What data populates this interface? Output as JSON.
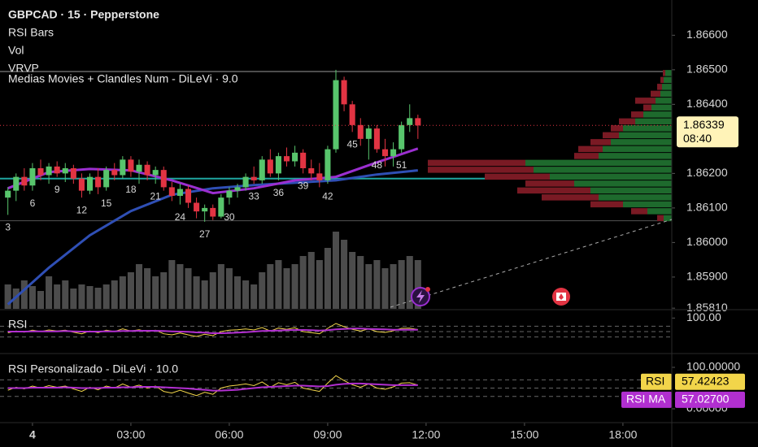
{
  "chart_data": [
    {
      "type": "candlestick",
      "title": "GBPCAD · 15 · Pepperstone",
      "indicators": [
        "RSI Bars",
        "Vol",
        "VRVP",
        "Medias Movies + Clandles Num - DiLeVi · 9.0"
      ],
      "x": [
        -0.75,
        -0.5,
        -0.25,
        0,
        0.25,
        0.5,
        0.75,
        1,
        1.25,
        1.5,
        1.75,
        2,
        2.25,
        2.5,
        2.75,
        3,
        3.25,
        3.5,
        3.75,
        4,
        4.25,
        4.5,
        4.75,
        5,
        5.25,
        5.5,
        5.75,
        6,
        6.25,
        6.5,
        6.75,
        7,
        7.25,
        7.5,
        7.75,
        8,
        8.25,
        8.5,
        8.75,
        9,
        9.25,
        9.5,
        9.75,
        10,
        10.25,
        10.5,
        10.75,
        11,
        11.25,
        11.5,
        11.75
      ],
      "open": [
        1.8613,
        1.8615,
        1.8619,
        1.86165,
        1.86215,
        1.86195,
        1.8622,
        1.862,
        1.86215,
        1.86185,
        1.8615,
        1.8619,
        1.8616,
        1.8621,
        1.86195,
        1.8624,
        1.86205,
        1.86225,
        1.86195,
        1.8621,
        1.8616,
        1.86135,
        1.86155,
        1.86115,
        1.8609,
        1.861,
        1.86075,
        1.8613,
        1.8615,
        1.8616,
        1.8619,
        1.8618,
        1.8624,
        1.862,
        1.8625,
        1.86235,
        1.8626,
        1.86215,
        1.862,
        1.8618,
        1.8627,
        1.8647,
        1.864,
        1.8634,
        1.863,
        1.8633,
        1.8627,
        1.8625,
        1.8627,
        1.8634,
        1.8636
      ],
      "high": [
        1.8616,
        1.862,
        1.86215,
        1.8623,
        1.8624,
        1.8623,
        1.86235,
        1.8623,
        1.86225,
        1.862,
        1.862,
        1.86215,
        1.8622,
        1.8623,
        1.8625,
        1.8625,
        1.8624,
        1.86235,
        1.8622,
        1.8622,
        1.86175,
        1.8617,
        1.86165,
        1.8613,
        1.8611,
        1.8611,
        1.8614,
        1.8616,
        1.8617,
        1.862,
        1.8622,
        1.8625,
        1.8627,
        1.8626,
        1.86275,
        1.8628,
        1.8627,
        1.8624,
        1.8623,
        1.8628,
        1.865,
        1.8648,
        1.8641,
        1.8636,
        1.8634,
        1.8634,
        1.863,
        1.8629,
        1.8635,
        1.864,
        1.8637
      ],
      "low": [
        1.8608,
        1.8612,
        1.8615,
        1.8615,
        1.8618,
        1.8617,
        1.8619,
        1.86175,
        1.8617,
        1.8613,
        1.8614,
        1.8614,
        1.8615,
        1.8618,
        1.86185,
        1.8619,
        1.8617,
        1.8618,
        1.8617,
        1.8615,
        1.8612,
        1.8611,
        1.861,
        1.8607,
        1.8606,
        1.86065,
        1.8607,
        1.8611,
        1.8613,
        1.8615,
        1.8617,
        1.8617,
        1.8619,
        1.8618,
        1.8622,
        1.8622,
        1.862,
        1.8618,
        1.8616,
        1.8617,
        1.8626,
        1.8638,
        1.8632,
        1.8628,
        1.8624,
        1.8626,
        1.8622,
        1.8622,
        1.8626,
        1.8632,
        1.863
      ],
      "close": [
        1.8615,
        1.8619,
        1.86165,
        1.86215,
        1.86195,
        1.8622,
        1.862,
        1.86215,
        1.86185,
        1.8615,
        1.8619,
        1.8616,
        1.8621,
        1.86195,
        1.8624,
        1.86205,
        1.86225,
        1.86195,
        1.8621,
        1.8616,
        1.86135,
        1.86155,
        1.86115,
        1.8609,
        1.861,
        1.86075,
        1.8613,
        1.8615,
        1.8616,
        1.8619,
        1.8618,
        1.8624,
        1.862,
        1.8625,
        1.86235,
        1.8626,
        1.86215,
        1.862,
        1.8618,
        1.8627,
        1.8647,
        1.864,
        1.8634,
        1.863,
        1.8633,
        1.8627,
        1.8625,
        1.8627,
        1.8634,
        1.8636,
        1.86339
      ],
      "up_color": "#58c56c",
      "down_color": "#e23443",
      "xlim": [
        -0.99,
        19.49
      ],
      "xticks": [
        {
          "value": 0,
          "label": "4"
        },
        {
          "value": 3,
          "label": "03:00"
        },
        {
          "value": 6,
          "label": "06:00"
        },
        {
          "value": 9,
          "label": "09:00"
        },
        {
          "value": 12,
          "label": "12:00"
        },
        {
          "value": 15,
          "label": "15:00"
        },
        {
          "value": 18,
          "label": "18:00"
        }
      ],
      "ylim": [
        1.85808,
        1.86702
      ],
      "yticks": [
        {
          "value": 1.866,
          "label": "1.86600"
        },
        {
          "value": 1.865,
          "label": "1.86500"
        },
        {
          "value": 1.864,
          "label": "1.86400"
        },
        {
          "value": 1.862,
          "label": "1.86200"
        },
        {
          "value": 1.861,
          "label": "1.86100"
        },
        {
          "value": 1.86,
          "label": "1.86000"
        },
        {
          "value": 1.859,
          "label": "1.85900"
        },
        {
          "value": 1.8581,
          "label": "1.85810"
        }
      ],
      "last_price": {
        "value": 1.86339,
        "label": "1.86339"
      },
      "countdown": "08:40",
      "volume": {
        "values": [
          30,
          25,
          35,
          28,
          22,
          40,
          30,
          35,
          25,
          30,
          28,
          26,
          30,
          35,
          40,
          45,
          55,
          50,
          40,
          45,
          60,
          55,
          50,
          40,
          35,
          45,
          55,
          50,
          40,
          35,
          30,
          45,
          55,
          60,
          50,
          55,
          65,
          70,
          60,
          75,
          95,
          85,
          70,
          65,
          55,
          60,
          50,
          55,
          60,
          65,
          60
        ],
        "ylim": [
          0,
          250
        ],
        "color": "#8a8a8a"
      },
      "volume_profile": {
        "prices": [
          1.8649,
          1.8647,
          1.8645,
          1.8643,
          1.8641,
          1.8639,
          1.8637,
          1.8635,
          1.8633,
          1.8631,
          1.8629,
          1.8627,
          1.8625,
          1.8623,
          1.8621,
          1.8619,
          1.8617,
          1.8615,
          1.8613,
          1.8611,
          1.8609,
          1.8607
        ],
        "up": [
          8,
          10,
          12,
          14,
          20,
          25,
          35,
          45,
          60,
          65,
          75,
          85,
          90,
          180,
          170,
          150,
          120,
          100,
          90,
          60,
          30,
          10
        ],
        "down": [
          3,
          4,
          6,
          12,
          25,
          10,
          15,
          20,
          15,
          20,
          25,
          30,
          30,
          120,
          130,
          80,
          60,
          90,
          70,
          40,
          20,
          8
        ],
        "xlim": [
          0,
          320
        ],
        "up_color": "#1e6a2d",
        "down_color": "#7a1a24"
      },
      "moving_averages": [
        {
          "color": "#2f4fb5",
          "x": [
            -0.75,
            0.5,
            1.75,
            3,
            4.25,
            5.5,
            6.75,
            8,
            9.25,
            10.5,
            11.75
          ],
          "values": [
            1.85821,
            1.85927,
            1.86021,
            1.86091,
            1.86138,
            1.86157,
            1.86166,
            1.86173,
            1.8618,
            1.86197,
            1.86209
          ]
        },
        {
          "color": "#9b2fd0",
          "x": [
            -0.75,
            0.5,
            1.75,
            3,
            4.25,
            5.5,
            6.75,
            8,
            9.25,
            10.5,
            11.75
          ],
          "values": [
            1.86157,
            1.86204,
            1.86213,
            1.86209,
            1.8618,
            1.86143,
            1.86157,
            1.8618,
            1.8619,
            1.86232,
            1.86272
          ]
        }
      ],
      "horizontal_lines": [
        {
          "value": 1.86495,
          "color": "#9a9a9a"
        },
        {
          "value": 1.86185,
          "color": "#1fa5a0"
        },
        {
          "value": 1.86063,
          "color": "#555555"
        }
      ],
      "candle_labels": {
        "x": [
          -0.75,
          0,
          0.75,
          1.5,
          2.25,
          3,
          3.75,
          4.5,
          5.25,
          6,
          6.75,
          7.5,
          8.25,
          9,
          9.75,
          10.5,
          11.25
        ],
        "values": [
          3,
          6,
          9,
          12,
          15,
          18,
          21,
          24,
          27,
          30,
          33,
          36,
          39,
          42,
          45,
          48,
          51
        ]
      }
    },
    {
      "type": "line",
      "title": "RSI",
      "ylim": [
        -28,
        128
      ],
      "yticks": [
        {
          "value": 100,
          "label": "100.00"
        }
      ],
      "levels": [
        70,
        50,
        30
      ]
    },
    {
      "type": "line",
      "title": "RSI Personalizado - DiLeVi · 10.0",
      "ylim": [
        -33.3,
        131.4
      ],
      "yticks": [
        {
          "value": 100,
          "label": "100.00000"
        },
        {
          "value": 0,
          "label": "0.00000"
        }
      ],
      "levels": [
        70,
        50,
        30
      ],
      "series": [
        {
          "name": "RSI",
          "color": "#f2d54a",
          "values": [
            45,
            52,
            48,
            55,
            50,
            56,
            52,
            55,
            48,
            42,
            52,
            46,
            55,
            50,
            60,
            52,
            57,
            50,
            55,
            42,
            38,
            45,
            38,
            32,
            40,
            35,
            50,
            55,
            57,
            60,
            56,
            65,
            52,
            63,
            58,
            64,
            50,
            46,
            42,
            62,
            80,
            68,
            58,
            52,
            60,
            50,
            47,
            53,
            62,
            63,
            57.42423
          ]
        },
        {
          "name": "RSI MA",
          "color": "#b12fd0",
          "last_label": "57.02700",
          "values": [
            50,
            50,
            50,
            51,
            51,
            51,
            51,
            52,
            51,
            50,
            50,
            50,
            51,
            51,
            52,
            52,
            53,
            53,
            53,
            52,
            51,
            50,
            49,
            47,
            46,
            44,
            44,
            45,
            46,
            48,
            50,
            52,
            53,
            54,
            55,
            56,
            56,
            55,
            54,
            55,
            58,
            60,
            61,
            61,
            60,
            59,
            58,
            57,
            57,
            57,
            57.027
          ]
        }
      ]
    }
  ]
}
